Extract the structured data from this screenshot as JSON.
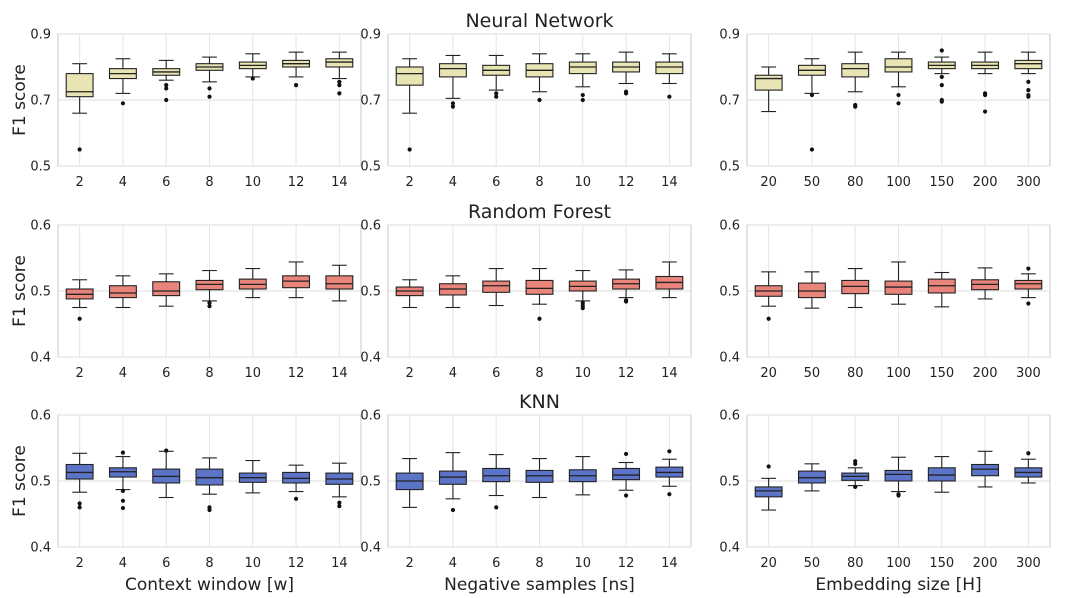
{
  "figure": {
    "row_titles": [
      "Neural Network",
      "Random Forest",
      "KNN"
    ],
    "y_axis_label": "F1 score",
    "column_xlabels": [
      "Context window [w]",
      "Negative samples [ns]",
      "Embedding size [H]"
    ],
    "row_colors": [
      "#e8e4b4",
      "#e8847a",
      "#5b74c8"
    ]
  },
  "chart_data": [
    {
      "type": "box",
      "row": 0,
      "col": 0,
      "title": "",
      "xlabel": "",
      "ylabel": "F1 score",
      "ylim": [
        0.5,
        0.9
      ],
      "yticks": [
        "0.5",
        "0.7",
        "0.9"
      ],
      "categories": [
        "2",
        "4",
        "6",
        "8",
        "10",
        "12",
        "14"
      ],
      "boxes": [
        {
          "whislo": 0.66,
          "q1": 0.71,
          "med": 0.725,
          "q3": 0.78,
          "whishi": 0.81,
          "fliers": [
            0.55
          ]
        },
        {
          "whislo": 0.72,
          "q1": 0.765,
          "med": 0.78,
          "q3": 0.795,
          "whishi": 0.825,
          "fliers": [
            0.69
          ]
        },
        {
          "whislo": 0.76,
          "q1": 0.775,
          "med": 0.785,
          "q3": 0.795,
          "whishi": 0.82,
          "fliers": [
            0.745,
            0.735,
            0.7
          ]
        },
        {
          "whislo": 0.755,
          "q1": 0.79,
          "med": 0.8,
          "q3": 0.81,
          "whishi": 0.83,
          "fliers": [
            0.735,
            0.71
          ]
        },
        {
          "whislo": 0.77,
          "q1": 0.795,
          "med": 0.805,
          "q3": 0.815,
          "whishi": 0.84,
          "fliers": [
            0.765
          ]
        },
        {
          "whislo": 0.77,
          "q1": 0.8,
          "med": 0.81,
          "q3": 0.82,
          "whishi": 0.845,
          "fliers": [
            0.745
          ]
        },
        {
          "whislo": 0.765,
          "q1": 0.8,
          "med": 0.815,
          "q3": 0.825,
          "whishi": 0.845,
          "fliers": [
            0.755,
            0.745,
            0.72
          ]
        }
      ]
    },
    {
      "type": "box",
      "row": 0,
      "col": 1,
      "title": "Neural Network",
      "xlabel": "",
      "ylabel": "",
      "ylim": [
        0.5,
        0.9
      ],
      "yticks": [
        "0.5",
        "0.7",
        "0.9"
      ],
      "categories": [
        "2",
        "4",
        "6",
        "8",
        "10",
        "12",
        "14"
      ],
      "boxes": [
        {
          "whislo": 0.66,
          "q1": 0.745,
          "med": 0.78,
          "q3": 0.8,
          "whishi": 0.825,
          "fliers": [
            0.55
          ]
        },
        {
          "whislo": 0.705,
          "q1": 0.77,
          "med": 0.795,
          "q3": 0.81,
          "whishi": 0.835,
          "fliers": [
            0.69,
            0.68
          ]
        },
        {
          "whislo": 0.73,
          "q1": 0.775,
          "med": 0.79,
          "q3": 0.805,
          "whishi": 0.835,
          "fliers": [
            0.72,
            0.71
          ]
        },
        {
          "whislo": 0.725,
          "q1": 0.77,
          "med": 0.79,
          "q3": 0.81,
          "whishi": 0.84,
          "fliers": [
            0.7
          ]
        },
        {
          "whislo": 0.74,
          "q1": 0.78,
          "med": 0.8,
          "q3": 0.815,
          "whishi": 0.84,
          "fliers": [
            0.715,
            0.7
          ]
        },
        {
          "whislo": 0.75,
          "q1": 0.785,
          "med": 0.8,
          "q3": 0.815,
          "whishi": 0.845,
          "fliers": [
            0.725,
            0.72
          ]
        },
        {
          "whislo": 0.75,
          "q1": 0.78,
          "med": 0.8,
          "q3": 0.815,
          "whishi": 0.84,
          "fliers": [
            0.71
          ]
        }
      ]
    },
    {
      "type": "box",
      "row": 0,
      "col": 2,
      "title": "",
      "xlabel": "",
      "ylabel": "",
      "ylim": [
        0.5,
        0.9
      ],
      "yticks": [
        "0.5",
        "0.7",
        "0.9"
      ],
      "categories": [
        "20",
        "50",
        "80",
        "100",
        "150",
        "200",
        "300"
      ],
      "boxes": [
        {
          "whislo": 0.665,
          "q1": 0.73,
          "med": 0.765,
          "q3": 0.775,
          "whishi": 0.8,
          "fliers": []
        },
        {
          "whislo": 0.72,
          "q1": 0.775,
          "med": 0.79,
          "q3": 0.805,
          "whishi": 0.825,
          "fliers": [
            0.715,
            0.55
          ]
        },
        {
          "whislo": 0.725,
          "q1": 0.77,
          "med": 0.795,
          "q3": 0.81,
          "whishi": 0.845,
          "fliers": [
            0.685,
            0.68
          ]
        },
        {
          "whislo": 0.74,
          "q1": 0.785,
          "med": 0.8,
          "q3": 0.825,
          "whishi": 0.845,
          "fliers": [
            0.715,
            0.69
          ]
        },
        {
          "whislo": 0.78,
          "q1": 0.795,
          "med": 0.805,
          "q3": 0.815,
          "whishi": 0.83,
          "fliers": [
            0.85,
            0.77,
            0.745,
            0.7,
            0.695
          ]
        },
        {
          "whislo": 0.78,
          "q1": 0.795,
          "med": 0.805,
          "q3": 0.815,
          "whishi": 0.845,
          "fliers": [
            0.72,
            0.715,
            0.665
          ]
        },
        {
          "whislo": 0.78,
          "q1": 0.795,
          "med": 0.81,
          "q3": 0.82,
          "whishi": 0.845,
          "fliers": [
            0.755,
            0.73,
            0.715,
            0.71
          ]
        }
      ]
    },
    {
      "type": "box",
      "row": 1,
      "col": 0,
      "title": "",
      "xlabel": "",
      "ylabel": "F1 score",
      "ylim": [
        0.4,
        0.6
      ],
      "yticks": [
        "0.4",
        "0.5",
        "0.6"
      ],
      "categories": [
        "2",
        "4",
        "6",
        "8",
        "10",
        "12",
        "14"
      ],
      "boxes": [
        {
          "whislo": 0.475,
          "q1": 0.488,
          "med": 0.495,
          "q3": 0.503,
          "whishi": 0.517,
          "fliers": [
            0.458
          ]
        },
        {
          "whislo": 0.475,
          "q1": 0.49,
          "med": 0.497,
          "q3": 0.508,
          "whishi": 0.523,
          "fliers": []
        },
        {
          "whislo": 0.477,
          "q1": 0.493,
          "med": 0.5,
          "q3": 0.514,
          "whishi": 0.526,
          "fliers": []
        },
        {
          "whislo": 0.485,
          "q1": 0.502,
          "med": 0.51,
          "q3": 0.516,
          "whishi": 0.531,
          "fliers": [
            0.482,
            0.477
          ]
        },
        {
          "whislo": 0.49,
          "q1": 0.503,
          "med": 0.51,
          "q3": 0.518,
          "whishi": 0.534,
          "fliers": []
        },
        {
          "whislo": 0.49,
          "q1": 0.505,
          "med": 0.515,
          "q3": 0.523,
          "whishi": 0.544,
          "fliers": []
        },
        {
          "whislo": 0.485,
          "q1": 0.503,
          "med": 0.511,
          "q3": 0.523,
          "whishi": 0.539,
          "fliers": []
        }
      ]
    },
    {
      "type": "box",
      "row": 1,
      "col": 1,
      "title": "Random Forest",
      "xlabel": "",
      "ylabel": "",
      "ylim": [
        0.4,
        0.6
      ],
      "yticks": [
        "0.4",
        "0.5",
        "0.6"
      ],
      "categories": [
        "2",
        "4",
        "6",
        "8",
        "10",
        "12",
        "14"
      ],
      "boxes": [
        {
          "whislo": 0.475,
          "q1": 0.493,
          "med": 0.5,
          "q3": 0.506,
          "whishi": 0.517,
          "fliers": []
        },
        {
          "whislo": 0.475,
          "q1": 0.494,
          "med": 0.503,
          "q3": 0.511,
          "whishi": 0.523,
          "fliers": []
        },
        {
          "whislo": 0.478,
          "q1": 0.498,
          "med": 0.508,
          "q3": 0.515,
          "whishi": 0.534,
          "fliers": []
        },
        {
          "whislo": 0.48,
          "q1": 0.495,
          "med": 0.504,
          "q3": 0.516,
          "whishi": 0.534,
          "fliers": [
            0.458
          ]
        },
        {
          "whislo": 0.485,
          "q1": 0.5,
          "med": 0.507,
          "q3": 0.515,
          "whishi": 0.531,
          "fliers": [
            0.482,
            0.478,
            0.474
          ]
        },
        {
          "whislo": 0.49,
          "q1": 0.503,
          "med": 0.511,
          "q3": 0.518,
          "whishi": 0.532,
          "fliers": [
            0.486,
            0.484
          ]
        },
        {
          "whislo": 0.49,
          "q1": 0.503,
          "med": 0.513,
          "q3": 0.522,
          "whishi": 0.544,
          "fliers": []
        }
      ]
    },
    {
      "type": "box",
      "row": 1,
      "col": 2,
      "title": "",
      "xlabel": "",
      "ylabel": "",
      "ylim": [
        0.4,
        0.6
      ],
      "yticks": [
        "0.4",
        "0.5",
        "0.6"
      ],
      "categories": [
        "20",
        "50",
        "80",
        "100",
        "150",
        "200",
        "300"
      ],
      "boxes": [
        {
          "whislo": 0.477,
          "q1": 0.492,
          "med": 0.5,
          "q3": 0.508,
          "whishi": 0.529,
          "fliers": [
            0.458
          ]
        },
        {
          "whislo": 0.474,
          "q1": 0.49,
          "med": 0.5,
          "q3": 0.512,
          "whishi": 0.529,
          "fliers": []
        },
        {
          "whislo": 0.475,
          "q1": 0.496,
          "med": 0.507,
          "q3": 0.516,
          "whishi": 0.534,
          "fliers": []
        },
        {
          "whislo": 0.48,
          "q1": 0.495,
          "med": 0.506,
          "q3": 0.515,
          "whishi": 0.544,
          "fliers": []
        },
        {
          "whislo": 0.476,
          "q1": 0.497,
          "med": 0.508,
          "q3": 0.518,
          "whishi": 0.528,
          "fliers": []
        },
        {
          "whislo": 0.488,
          "q1": 0.502,
          "med": 0.51,
          "q3": 0.517,
          "whishi": 0.535,
          "fliers": []
        },
        {
          "whislo": 0.49,
          "q1": 0.503,
          "med": 0.511,
          "q3": 0.516,
          "whishi": 0.526,
          "fliers": [
            0.534,
            0.481
          ]
        }
      ]
    },
    {
      "type": "box",
      "row": 2,
      "col": 0,
      "title": "",
      "xlabel": "Context window [w]",
      "ylabel": "F1 score",
      "ylim": [
        0.4,
        0.6
      ],
      "yticks": [
        "0.4",
        "0.5",
        "0.6"
      ],
      "categories": [
        "2",
        "4",
        "6",
        "8",
        "10",
        "12",
        "14"
      ],
      "boxes": [
        {
          "whislo": 0.483,
          "q1": 0.503,
          "med": 0.513,
          "q3": 0.525,
          "whishi": 0.542,
          "fliers": [
            0.466,
            0.46
          ]
        },
        {
          "whislo": 0.487,
          "q1": 0.506,
          "med": 0.514,
          "q3": 0.52,
          "whishi": 0.537,
          "fliers": [
            0.543,
            0.485,
            0.47,
            0.459
          ]
        },
        {
          "whislo": 0.475,
          "q1": 0.497,
          "med": 0.507,
          "q3": 0.518,
          "whishi": 0.545,
          "fliers": [
            0.546
          ]
        },
        {
          "whislo": 0.48,
          "q1": 0.494,
          "med": 0.505,
          "q3": 0.518,
          "whishi": 0.535,
          "fliers": [
            0.46,
            0.456
          ]
        },
        {
          "whislo": 0.482,
          "q1": 0.498,
          "med": 0.505,
          "q3": 0.512,
          "whishi": 0.531,
          "fliers": []
        },
        {
          "whislo": 0.484,
          "q1": 0.497,
          "med": 0.504,
          "q3": 0.513,
          "whishi": 0.524,
          "fliers": [
            0.473
          ]
        },
        {
          "whislo": 0.476,
          "q1": 0.495,
          "med": 0.503,
          "q3": 0.512,
          "whishi": 0.527,
          "fliers": [
            0.467,
            0.462
          ]
        }
      ]
    },
    {
      "type": "box",
      "row": 2,
      "col": 1,
      "title": "KNN",
      "xlabel": "Negative samples [ns]",
      "ylabel": "",
      "ylim": [
        0.4,
        0.6
      ],
      "yticks": [
        "0.4",
        "0.5",
        "0.6"
      ],
      "categories": [
        "2",
        "4",
        "6",
        "8",
        "10",
        "12",
        "14"
      ],
      "boxes": [
        {
          "whislo": 0.46,
          "q1": 0.487,
          "med": 0.5,
          "q3": 0.512,
          "whishi": 0.534,
          "fliers": []
        },
        {
          "whislo": 0.473,
          "q1": 0.495,
          "med": 0.506,
          "q3": 0.515,
          "whishi": 0.543,
          "fliers": [
            0.456
          ]
        },
        {
          "whislo": 0.478,
          "q1": 0.499,
          "med": 0.508,
          "q3": 0.519,
          "whishi": 0.54,
          "fliers": [
            0.46
          ]
        },
        {
          "whislo": 0.475,
          "q1": 0.498,
          "med": 0.508,
          "q3": 0.516,
          "whishi": 0.534,
          "fliers": []
        },
        {
          "whislo": 0.479,
          "q1": 0.499,
          "med": 0.508,
          "q3": 0.517,
          "whishi": 0.537,
          "fliers": []
        },
        {
          "whislo": 0.486,
          "q1": 0.502,
          "med": 0.509,
          "q3": 0.519,
          "whishi": 0.528,
          "fliers": [
            0.541,
            0.478
          ]
        },
        {
          "whislo": 0.492,
          "q1": 0.506,
          "med": 0.513,
          "q3": 0.521,
          "whishi": 0.533,
          "fliers": [
            0.545,
            0.48
          ]
        }
      ]
    },
    {
      "type": "box",
      "row": 2,
      "col": 2,
      "title": "",
      "xlabel": "Embedding size [H]",
      "ylabel": "",
      "ylim": [
        0.4,
        0.6
      ],
      "yticks": [
        "0.4",
        "0.5",
        "0.6"
      ],
      "categories": [
        "20",
        "50",
        "80",
        "100",
        "150",
        "200",
        "300"
      ],
      "boxes": [
        {
          "whislo": 0.456,
          "q1": 0.476,
          "med": 0.485,
          "q3": 0.491,
          "whishi": 0.504,
          "fliers": [
            0.522
          ]
        },
        {
          "whislo": 0.485,
          "q1": 0.497,
          "med": 0.505,
          "q3": 0.515,
          "whishi": 0.526,
          "fliers": []
        },
        {
          "whislo": 0.493,
          "q1": 0.501,
          "med": 0.507,
          "q3": 0.512,
          "whishi": 0.52,
          "fliers": [
            0.53,
            0.526,
            0.491
          ]
        },
        {
          "whislo": 0.484,
          "q1": 0.5,
          "med": 0.51,
          "q3": 0.516,
          "whishi": 0.536,
          "fliers": [
            0.48,
            0.478
          ]
        },
        {
          "whislo": 0.483,
          "q1": 0.5,
          "med": 0.509,
          "q3": 0.52,
          "whishi": 0.537,
          "fliers": []
        },
        {
          "whislo": 0.491,
          "q1": 0.508,
          "med": 0.518,
          "q3": 0.525,
          "whishi": 0.545,
          "fliers": []
        },
        {
          "whislo": 0.497,
          "q1": 0.506,
          "med": 0.513,
          "q3": 0.52,
          "whishi": 0.533,
          "fliers": [
            0.542
          ]
        }
      ]
    }
  ]
}
